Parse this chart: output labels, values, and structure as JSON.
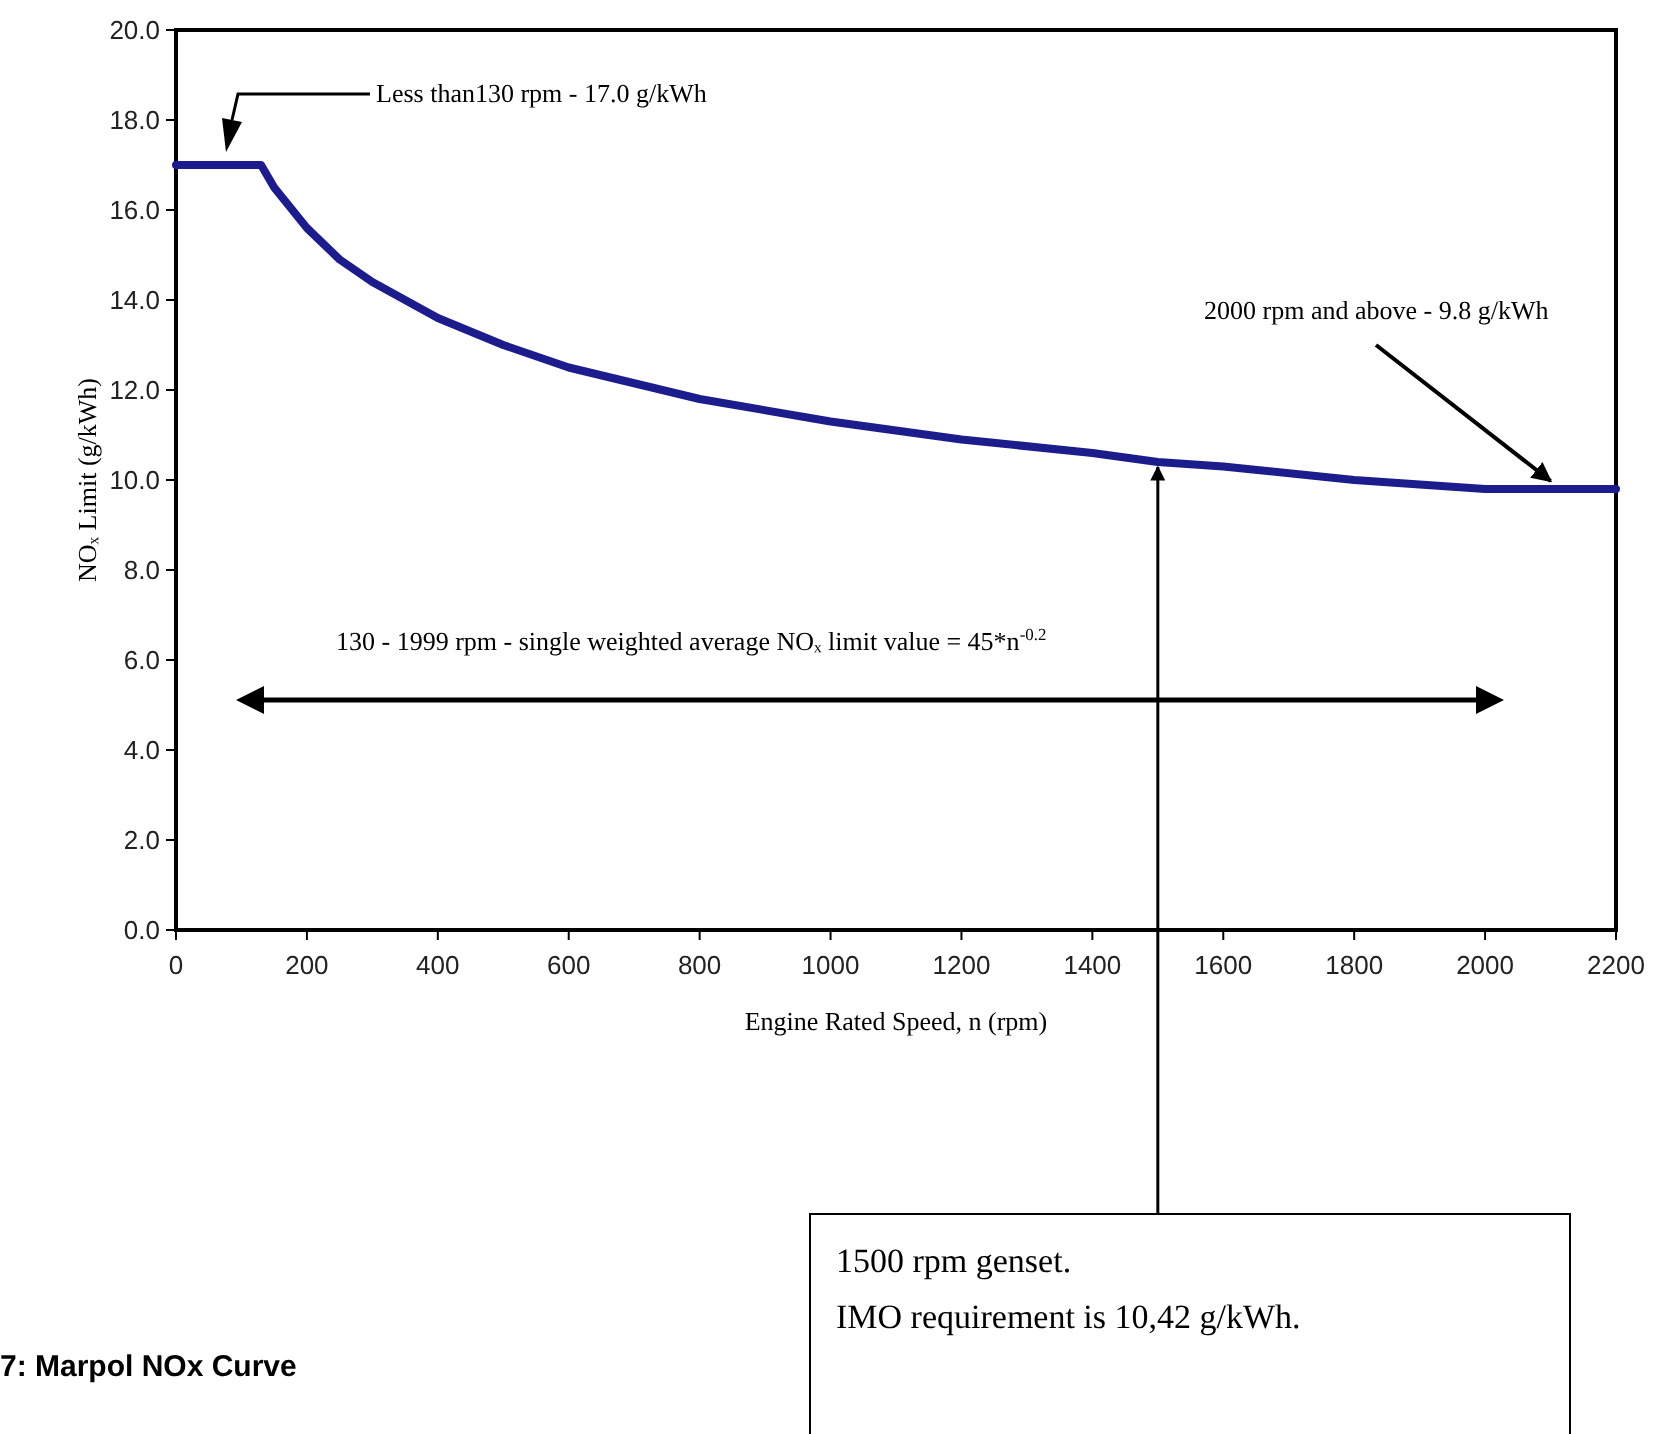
{
  "chart_data": {
    "type": "line",
    "xlabel": "Engine Rated Speed, n (rpm)",
    "ylabel": "NOₓ Limit (g/kWh)",
    "x": [
      0,
      130,
      150,
      200,
      250,
      300,
      400,
      500,
      600,
      800,
      1000,
      1200,
      1400,
      1500,
      1600,
      1800,
      2000,
      2200
    ],
    "series": [
      {
        "color": "#1c1c8c",
        "values": [
          17.0,
          17.0,
          16.5,
          15.6,
          14.9,
          14.4,
          13.6,
          13.0,
          12.5,
          11.8,
          11.3,
          10.9,
          10.6,
          10.4,
          10.3,
          10.0,
          9.8,
          9.8
        ]
      }
    ],
    "xlim": [
      0,
      2200
    ],
    "xticks": [
      0,
      200,
      400,
      600,
      800,
      1000,
      1200,
      1400,
      1600,
      1800,
      2000,
      2200
    ],
    "ylim": [
      0,
      20
    ],
    "yticks": [
      {
        "value": 0,
        "label": "0.0"
      },
      {
        "value": 2,
        "label": "2.0"
      },
      {
        "value": 4,
        "label": "4.0"
      },
      {
        "value": 6,
        "label": "6.0"
      },
      {
        "value": 8,
        "label": "8.0"
      },
      {
        "value": 10,
        "label": "10.0"
      },
      {
        "value": 12,
        "label": "12.0"
      },
      {
        "value": 14,
        "label": "14.0"
      },
      {
        "value": 16,
        "label": "16.0"
      },
      {
        "value": 18,
        "label": "18.0"
      },
      {
        "value": 20,
        "label": "20.0"
      }
    ],
    "grid": false,
    "marker": "none",
    "line_style": "solid",
    "annotations": [
      "Less than130 rpm - 17.0 g/kWh",
      {
        "text": "2000 rpm and above - 9.8 g/kWh",
        "x": 2100,
        "y": 9.8
      },
      "130 - 1999 rpm - single weighted average NOₓ limit value = 45*n$^{-0.2}$",
      {
        "text": "1500 rpm genset. IMO requirement is 10,42 g/kWh.",
        "x": 1500,
        "y": 10.42
      },
      "7: Marpol NOx Curve"
    ]
  }
}
